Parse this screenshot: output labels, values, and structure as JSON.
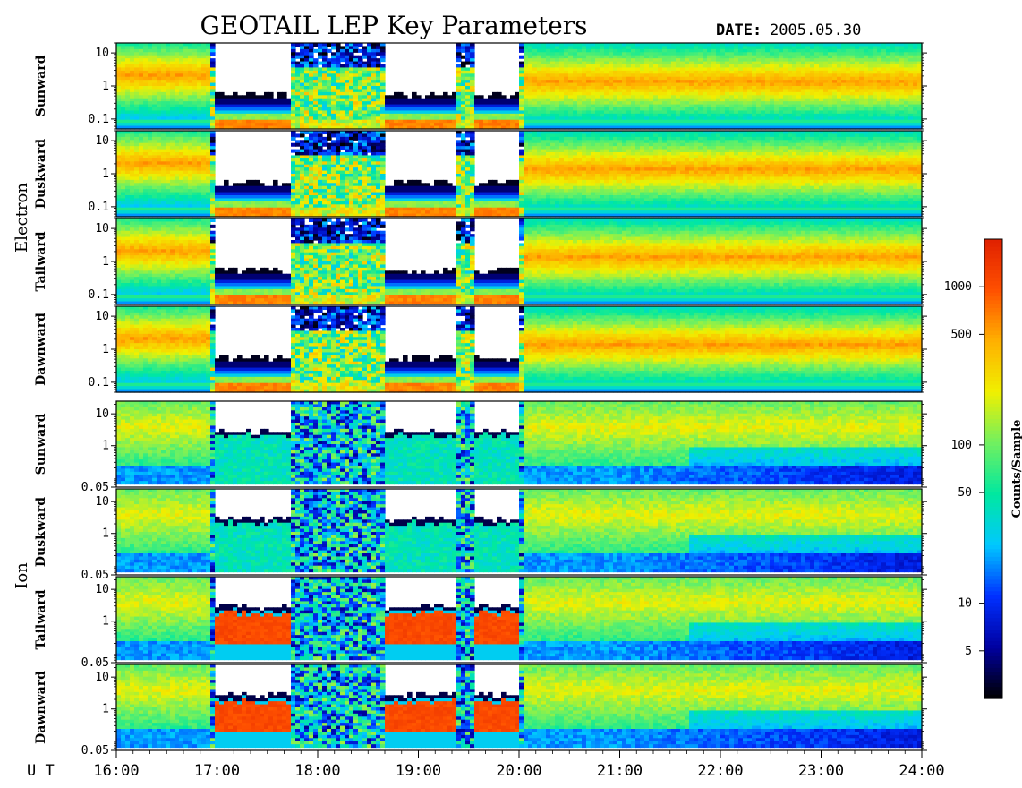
{
  "header": {
    "title": "GEOTAIL LEP Key Parameters",
    "date_label": "DATE:",
    "date_value": "2005.05.30"
  },
  "chart_data": {
    "type": "heatmap",
    "x_axis_label": "U T",
    "x_range_hours": [
      16,
      24
    ],
    "x_ticks": [
      "16:00",
      "17:00",
      "18:00",
      "19:00",
      "20:00",
      "21:00",
      "22:00",
      "23:00",
      "24:00"
    ],
    "y_scale": "log",
    "groups": [
      {
        "name": "Electron",
        "y_range": [
          0.05,
          20
        ],
        "y_ticks": [
          "10",
          "1",
          "0.1"
        ],
        "panels": [
          "Sunward",
          "Duskward",
          "Tailward",
          "Dawnward"
        ]
      },
      {
        "name": "Ion",
        "y_range": [
          0.05,
          25
        ],
        "y_ticks": [
          "10",
          "1",
          "0.05"
        ],
        "panels": [
          "Sunward",
          "Duskward",
          "Tailward",
          "Dawnward"
        ]
      }
    ],
    "colorbar": {
      "title": "Counts/Sample",
      "scale": "log",
      "range": [
        2.5,
        2000
      ],
      "ticks": [
        "1000",
        "500",
        "100",
        "50",
        "10",
        "5"
      ],
      "tick_values": [
        1000,
        500,
        100,
        50,
        10,
        5
      ],
      "colormap": [
        "#000000",
        "#0000a0",
        "#0030ff",
        "#00c8ff",
        "#00e8a0",
        "#70f060",
        "#f0f000",
        "#ffb000",
        "#ff5000",
        "#e02000"
      ]
    },
    "intervals": {
      "magnetosheath": [
        [
          16.0,
          16.95
        ],
        [
          20.05,
          24.0
        ]
      ],
      "lobe_like": [
        [
          17.0,
          17.75
        ],
        [
          18.65,
          19.4
        ],
        [
          19.55,
          20.0
        ]
      ]
    }
  }
}
